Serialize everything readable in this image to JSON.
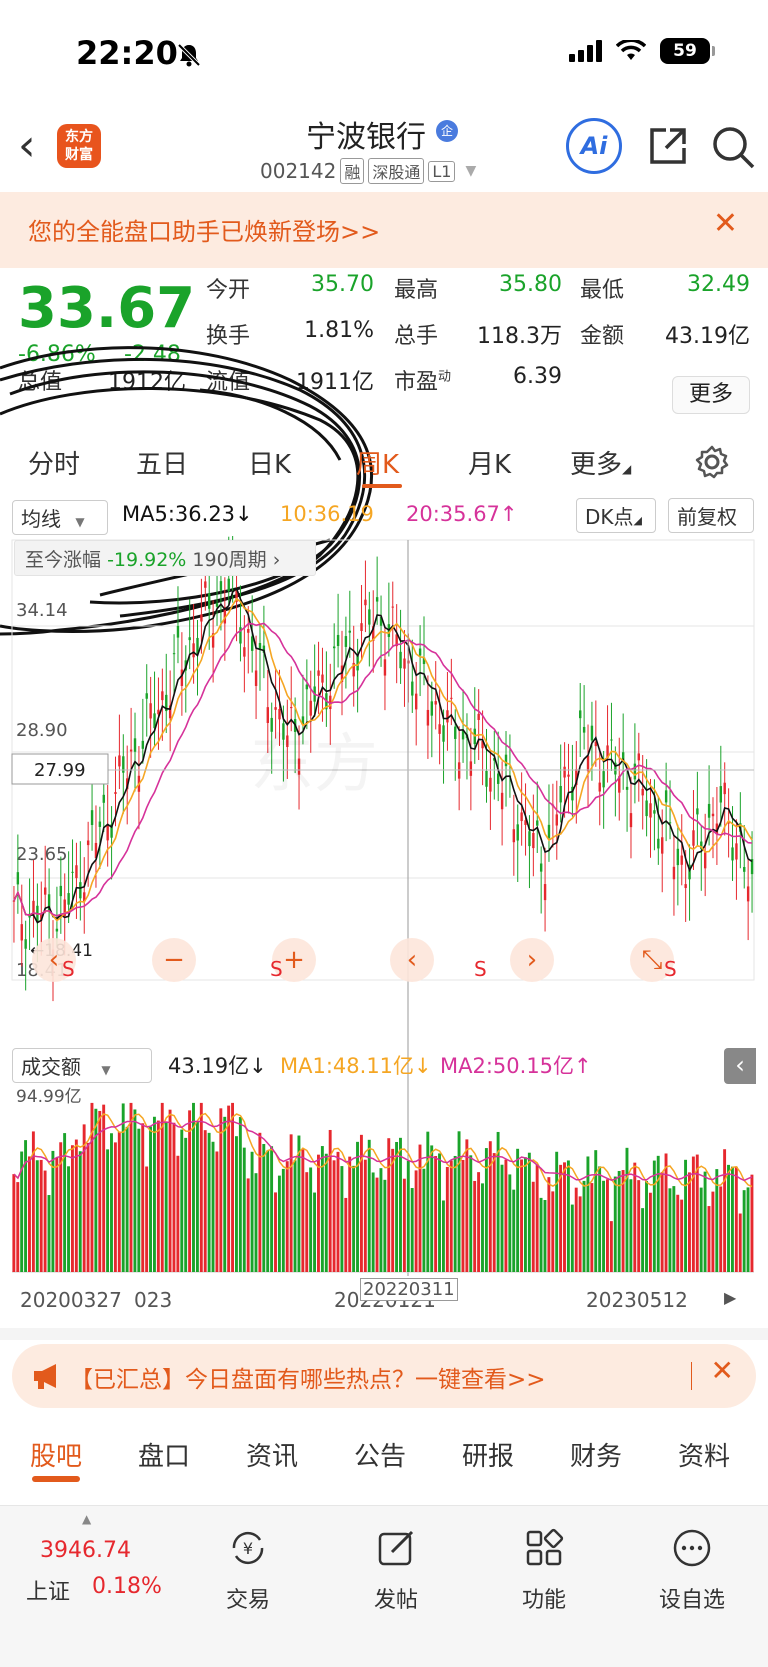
{
  "status": {
    "time": "22:20",
    "battery": "59"
  },
  "header": {
    "logo_line1": "东方",
    "logo_line2": "财富",
    "stock_name": "宁波银行",
    "qi_badge": "企",
    "code": "002142",
    "tags": [
      "融",
      "深股通",
      "L1"
    ],
    "ai_label": "Ai"
  },
  "promo": {
    "text": "您的全能盘口助手已焕新登场>>"
  },
  "quote": {
    "price": "33.67",
    "pct": "-6.86%",
    "change": "-2.48",
    "fields": {
      "open_label": "今开",
      "open": "35.70",
      "high_label": "最高",
      "high": "35.80",
      "low_label": "最低",
      "low": "32.49",
      "turnover_label": "换手",
      "turnover": "1.81%",
      "volume_label": "总手",
      "volume": "118.3万",
      "amount_label": "金额",
      "amount": "43.19亿",
      "mktcap_label": "总值",
      "mktcap": "1912亿",
      "float_label": "流值",
      "float": "1911亿",
      "pe_label": "市盈",
      "pe_sup": "动",
      "pe": "6.39"
    },
    "more": "更多"
  },
  "period_tabs": [
    "分时",
    "五日",
    "日K",
    "周K",
    "月K",
    "更多"
  ],
  "ma_bar": {
    "indicator": "均线",
    "ma5": "MA5:36.23",
    "ma10": "10:36.19",
    "ma20": "20:35.67",
    "dk": "DK点",
    "adjust": "前复权"
  },
  "since": {
    "label": "至今涨幅",
    "value": "-19.92%",
    "period": "190周期"
  },
  "price_axis": [
    "34.14",
    "28.90",
    "23.65",
    "18.41"
  ],
  "crosshair_price": "27.99",
  "low_marker": "18.41",
  "vol_bar": {
    "indicator": "成交额",
    "value": "43.19亿",
    "ma1": "MA1:48.11亿",
    "ma2": "MA2:50.15亿",
    "max": "94.99亿"
  },
  "dates": {
    "d1": "20200327",
    "d2": "023",
    "d3": "20220121",
    "d_cross": "20220311",
    "d4": "20230512"
  },
  "news": {
    "text": "【已汇总】今日盘面有哪些热点？一键查看>>"
  },
  "bottom_tabs": [
    "股吧",
    "盘口",
    "资讯",
    "公告",
    "研报",
    "财务",
    "资料"
  ],
  "toolbar": {
    "index_value": "3946.74",
    "index_name": "上证",
    "index_pct": "0.18%",
    "trade": "交易",
    "post": "发帖",
    "functions": "功能",
    "watchlist": "设自选"
  },
  "colors": {
    "up": "#e6282e",
    "down": "#1aa32a",
    "accent": "#e25a1c",
    "ma5": "#111111",
    "ma10": "#f5a623",
    "ma20": "#d6329a"
  }
}
